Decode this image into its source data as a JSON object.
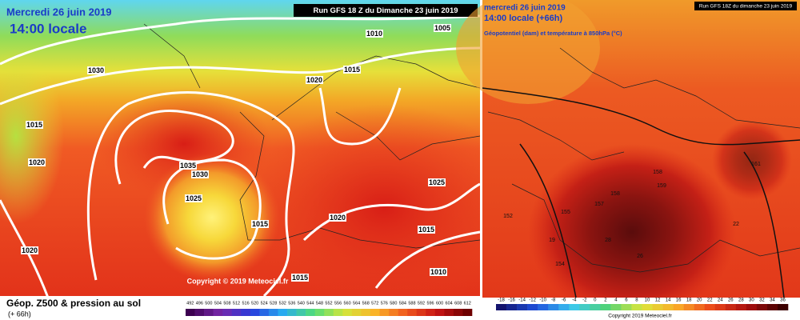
{
  "left_map": {
    "date": "Mercredi 26 juin 2019",
    "time": "14:00 locale",
    "run": "Run GFS 18 Z du Dimanche 23 juin 2019",
    "isobars": [
      "1010",
      "1005",
      "1030",
      "1020",
      "1015",
      "1015",
      "1020",
      "1035",
      "1030",
      "1025",
      "1015",
      "1020",
      "1025",
      "1015",
      "1010",
      "1020",
      "1015"
    ],
    "copyright": "Copyright © 2019 Meteociel.fr",
    "legend_title": "Géop. Z500 & pression au sol",
    "lead": "(+ 66h)",
    "scale": [
      "492",
      "496",
      "500",
      "504",
      "508",
      "512",
      "516",
      "520",
      "524",
      "528",
      "532",
      "536",
      "540",
      "544",
      "548",
      "552",
      "556",
      "560",
      "564",
      "568",
      "572",
      "576",
      "580",
      "584",
      "588",
      "592",
      "596",
      "600",
      "604",
      "608",
      "612"
    ]
  },
  "right_map": {
    "date": "mercredi 26 juin 2019",
    "time": "14:00 locale (+66h)",
    "subtitle": "Géopotentiel (dam) et température à 850hPa (°C)",
    "run": "Run GFS 18Z du dimanche 23 juin 2019",
    "labels": [
      "152",
      "155",
      "157",
      "158",
      "159",
      "158",
      "161",
      "154",
      "26",
      "28",
      "19",
      "22"
    ],
    "copyright": "Copyright 2019 Meteociel.fr",
    "scale": [
      "-18",
      "-16",
      "-14",
      "-12",
      "-10",
      "-8",
      "-6",
      "-4",
      "-2",
      "0",
      "2",
      "4",
      "6",
      "8",
      "10",
      "12",
      "14",
      "16",
      "18",
      "20",
      "22",
      "24",
      "26",
      "28",
      "30",
      "32",
      "34",
      "36"
    ]
  }
}
